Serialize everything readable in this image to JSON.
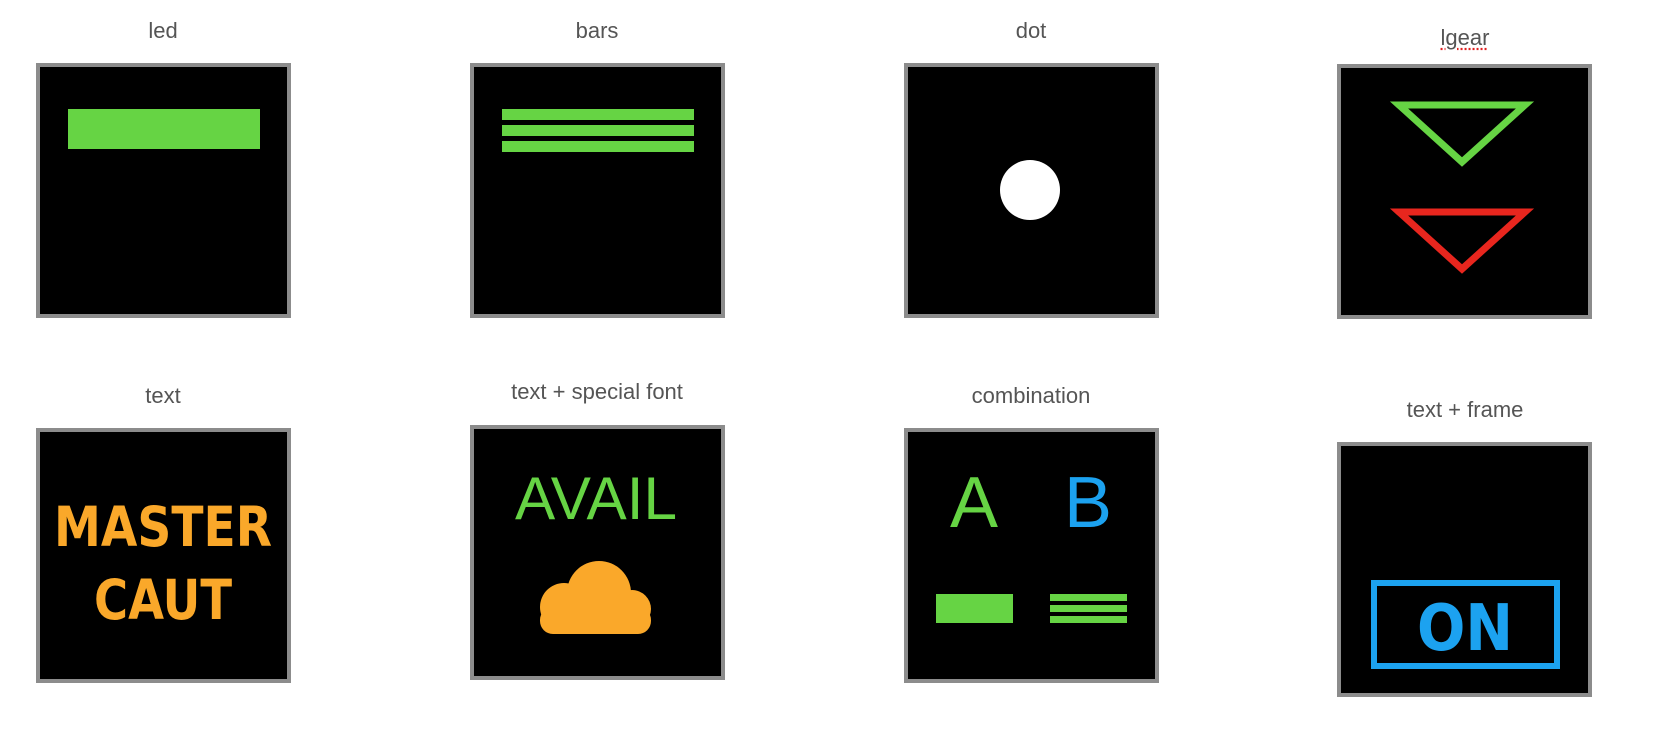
{
  "panels": [
    {
      "id": "led",
      "caption": "led"
    },
    {
      "id": "bars",
      "caption": "bars"
    },
    {
      "id": "dot",
      "caption": "dot"
    },
    {
      "id": "lgear",
      "caption": "lgear"
    },
    {
      "id": "text",
      "caption": "text",
      "line1": "MASTER",
      "line2": "CAUT"
    },
    {
      "id": "special",
      "caption": "text + special font",
      "word": "AVAIL",
      "icon": "cloud-icon"
    },
    {
      "id": "combo",
      "caption": "combination",
      "letter_a": "A",
      "letter_b": "B"
    },
    {
      "id": "frame",
      "caption": "text + frame",
      "word": "ON"
    }
  ],
  "colors": {
    "green": "#66d444",
    "red": "#e8261e",
    "orange": "#faa82a",
    "blue": "#1ca2f0",
    "white": "#ffffff",
    "background": "#000000",
    "border": "#8c8c8c"
  }
}
